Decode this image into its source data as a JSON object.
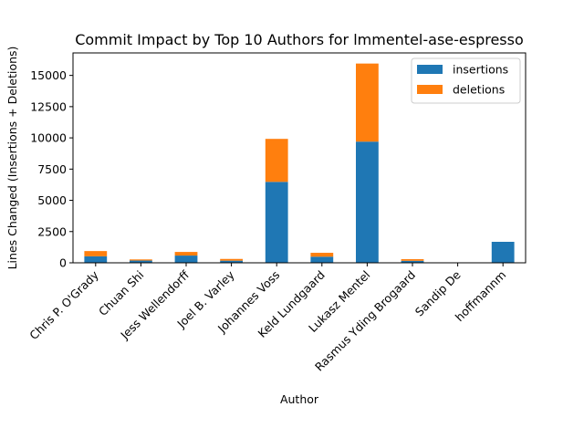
{
  "chart_data": {
    "type": "bar",
    "stacked": true,
    "title": "Commit Impact by Top 10 Authors for lmmentel-ase-espresso",
    "xlabel": "Author",
    "ylabel": "Lines Changed (Insertions + Deletions)",
    "ylim": [
      0,
      16800
    ],
    "yticks": [
      0,
      2500,
      5000,
      7500,
      10000,
      12500,
      15000
    ],
    "categories": [
      "Chris P. O'Grady",
      "Chuan Shi",
      "Jess Wellendorff",
      "Joel B. Varley",
      "Johannes Voss",
      "Keld Lundgaard",
      "Lukasz Mentel",
      "Rasmus Yding Brogaard",
      "Sandip De",
      "hoffmannm"
    ],
    "series": [
      {
        "name": "insertions",
        "color": "#1f77b4",
        "values": [
          520,
          180,
          580,
          170,
          6480,
          490,
          9700,
          160,
          10,
          1680
        ]
      },
      {
        "name": "deletions",
        "color": "#ff7f0e",
        "values": [
          420,
          90,
          290,
          140,
          3440,
          310,
          6250,
          130,
          5,
          0
        ]
      }
    ],
    "legend_position": "top-right",
    "grid": false
  }
}
